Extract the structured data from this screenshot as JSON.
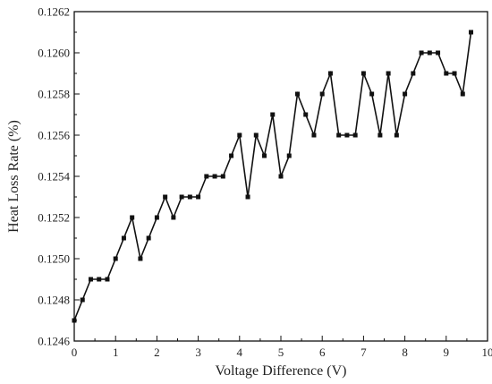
{
  "chart_data": {
    "type": "line",
    "xlabel": "Voltage Difference (V)",
    "ylabel": "Heat Loss Rate (%)",
    "xlim": [
      0,
      10
    ],
    "ylim": [
      0.1246,
      0.1262
    ],
    "x_ticks": [
      0,
      1,
      2,
      3,
      4,
      5,
      6,
      7,
      8,
      9,
      10
    ],
    "y_ticks": [
      "0.1246",
      "0.1248",
      "0.1250",
      "0.1252",
      "0.1254",
      "0.1256",
      "0.1258",
      "0.1260",
      "0.1262"
    ],
    "grid": false,
    "marker": "square",
    "line_color": "#111111",
    "series": [
      {
        "x": [
          0,
          0.2,
          0.4,
          0.6,
          0.8,
          1.0,
          1.2,
          1.4,
          1.6,
          1.8,
          2.0,
          2.2,
          2.4,
          2.6,
          2.8,
          3.0,
          3.2,
          3.4,
          3.6,
          3.8,
          4.0,
          4.2,
          4.4,
          4.6,
          4.8,
          5.0,
          5.2,
          5.4,
          5.6,
          5.8,
          6.0,
          6.2,
          6.4,
          6.6,
          6.8,
          7.0,
          7.2,
          7.4,
          7.6,
          7.8,
          8.0,
          8.2,
          8.4,
          8.6,
          8.8,
          9.0,
          9.2,
          9.4,
          9.6
        ],
        "y": [
          0.1247,
          0.1248,
          0.1249,
          0.1249,
          0.1249,
          0.125,
          0.1251,
          0.1252,
          0.125,
          0.1251,
          0.1252,
          0.1253,
          0.1252,
          0.1253,
          0.1253,
          0.1253,
          0.1254,
          0.1254,
          0.1254,
          0.1255,
          0.1256,
          0.1253,
          0.1256,
          0.1255,
          0.1257,
          0.1254,
          0.1255,
          0.1258,
          0.1257,
          0.1256,
          0.1258,
          0.1259,
          0.1256,
          0.1256,
          0.1256,
          0.1259,
          0.1258,
          0.1256,
          0.1259,
          0.1256,
          0.1258,
          0.1259,
          0.126,
          0.126,
          0.126,
          0.1259,
          0.1259,
          0.1258,
          0.1261
        ]
      }
    ]
  }
}
